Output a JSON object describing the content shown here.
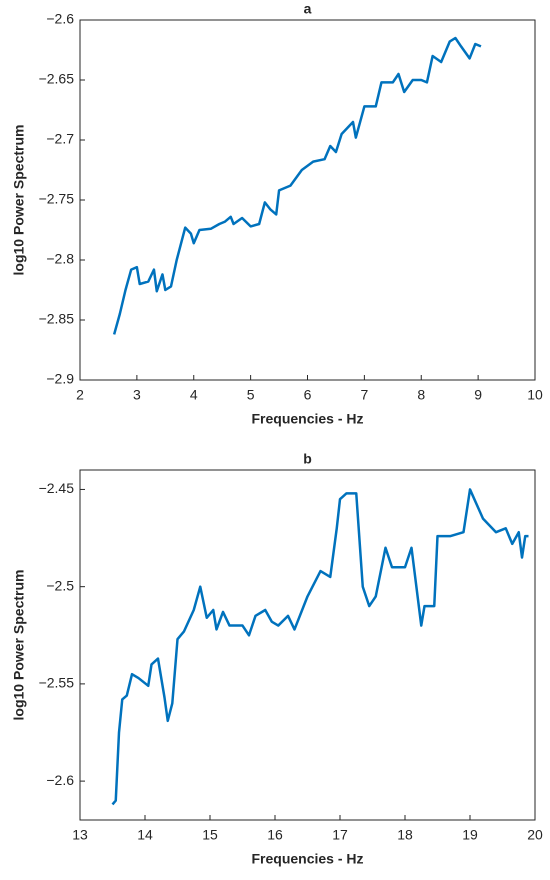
{
  "chart_data": [
    {
      "type": "line",
      "title": "a",
      "xlabel": "Frequencies - Hz",
      "ylabel": "log10 Power Spectrum",
      "xlim": [
        2,
        10
      ],
      "xticks": [
        2,
        3,
        4,
        5,
        6,
        7,
        8,
        9,
        10
      ],
      "ylim": [
        -2.9,
        -2.6
      ],
      "yticks": [
        {
          "value": -2.9,
          "label": "−2.9"
        },
        {
          "value": -2.85,
          "label": "−2.85"
        },
        {
          "value": -2.8,
          "label": "−2.8"
        },
        {
          "value": -2.75,
          "label": "−2.75"
        },
        {
          "value": -2.7,
          "label": "−2.7"
        },
        {
          "value": -2.65,
          "label": "−2.65"
        },
        {
          "value": -2.6,
          "label": "−2.6"
        }
      ],
      "series": [
        {
          "color": "#0072bd",
          "x": [
            2.6,
            2.7,
            2.8,
            2.9,
            3.0,
            3.05,
            3.2,
            3.3,
            3.35,
            3.45,
            3.5,
            3.6,
            3.7,
            3.85,
            3.95,
            4.0,
            4.1,
            4.3,
            4.45,
            4.55,
            4.65,
            4.7,
            4.85,
            5.0,
            5.15,
            5.25,
            5.35,
            5.45,
            5.5,
            5.7,
            5.9,
            6.1,
            6.3,
            6.4,
            6.5,
            6.6,
            6.7,
            6.8,
            6.85,
            7.0,
            7.2,
            7.3,
            7.5,
            7.6,
            7.7,
            7.85,
            8.0,
            8.1,
            8.2,
            8.35,
            8.5,
            8.6,
            8.7,
            8.85,
            8.95,
            9.05
          ],
          "values": [
            -2.862,
            -2.845,
            -2.825,
            -2.808,
            -2.806,
            -2.82,
            -2.818,
            -2.808,
            -2.826,
            -2.812,
            -2.825,
            -2.822,
            -2.8,
            -2.773,
            -2.778,
            -2.786,
            -2.775,
            -2.774,
            -2.77,
            -2.768,
            -2.764,
            -2.77,
            -2.765,
            -2.772,
            -2.77,
            -2.752,
            -2.758,
            -2.762,
            -2.742,
            -2.738,
            -2.725,
            -2.718,
            -2.716,
            -2.705,
            -2.71,
            -2.695,
            -2.69,
            -2.685,
            -2.698,
            -2.672,
            -2.672,
            -2.652,
            -2.652,
            -2.645,
            -2.66,
            -2.65,
            -2.65,
            -2.652,
            -2.63,
            -2.635,
            -2.618,
            -2.615,
            -2.622,
            -2.632,
            -2.62,
            -2.622
          ]
        }
      ]
    },
    {
      "type": "line",
      "title": "b",
      "xlabel": "Frequencies - Hz",
      "ylabel": "log10 Power Spectrum",
      "xlim": [
        13,
        20
      ],
      "xticks": [
        13,
        14,
        15,
        16,
        17,
        18,
        19,
        20
      ],
      "ylim": [
        -2.62,
        -2.44
      ],
      "yticks": [
        {
          "value": -2.6,
          "label": "−2.6"
        },
        {
          "value": -2.55,
          "label": "−2.55"
        },
        {
          "value": -2.5,
          "label": "−2.5"
        },
        {
          "value": -2.45,
          "label": "−2.45"
        }
      ],
      "series": [
        {
          "color": "#0072bd",
          "x": [
            13.5,
            13.55,
            13.6,
            13.65,
            13.72,
            13.8,
            13.9,
            14.05,
            14.1,
            14.2,
            14.3,
            14.35,
            14.42,
            14.5,
            14.6,
            14.75,
            14.85,
            14.95,
            15.05,
            15.1,
            15.2,
            15.3,
            15.5,
            15.6,
            15.7,
            15.85,
            15.95,
            16.05,
            16.2,
            16.3,
            16.5,
            16.7,
            16.85,
            16.95,
            17.0,
            17.1,
            17.25,
            17.35,
            17.45,
            17.55,
            17.7,
            17.8,
            18.0,
            18.1,
            18.25,
            18.3,
            18.45,
            18.5,
            18.7,
            18.9,
            19.0,
            19.2,
            19.4,
            19.55,
            19.65,
            19.75,
            19.8,
            19.85,
            19.9
          ],
          "values": [
            -2.612,
            -2.61,
            -2.575,
            -2.558,
            -2.556,
            -2.545,
            -2.547,
            -2.551,
            -2.54,
            -2.537,
            -2.557,
            -2.569,
            -2.56,
            -2.527,
            -2.523,
            -2.512,
            -2.5,
            -2.516,
            -2.512,
            -2.522,
            -2.513,
            -2.52,
            -2.52,
            -2.525,
            -2.515,
            -2.512,
            -2.518,
            -2.52,
            -2.515,
            -2.522,
            -2.505,
            -2.492,
            -2.495,
            -2.47,
            -2.455,
            -2.452,
            -2.452,
            -2.5,
            -2.51,
            -2.505,
            -2.48,
            -2.49,
            -2.49,
            -2.48,
            -2.52,
            -2.51,
            -2.51,
            -2.474,
            -2.474,
            -2.472,
            -2.45,
            -2.465,
            -2.472,
            -2.47,
            -2.478,
            -2.472,
            -2.485,
            -2.474,
            -2.474
          ]
        }
      ]
    }
  ]
}
